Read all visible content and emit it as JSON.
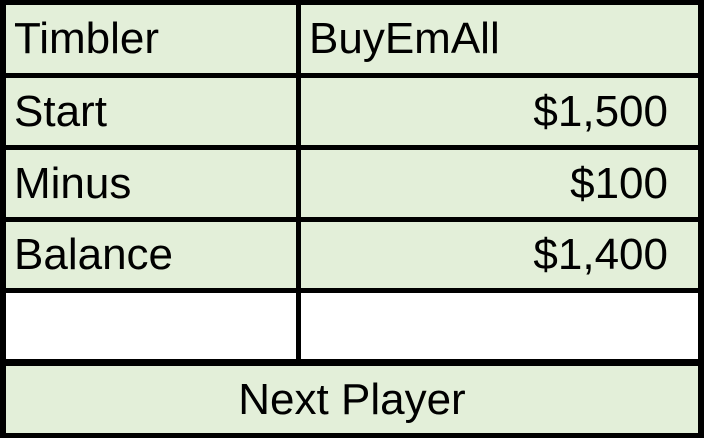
{
  "table": {
    "header": {
      "label": "Timbler",
      "value": "BuyEmAll"
    },
    "rows": [
      {
        "label": "Start",
        "value": "$1,500"
      },
      {
        "label": "Minus",
        "value": "$100"
      },
      {
        "label": "Balance",
        "value": "$1,400"
      }
    ],
    "blank_row": {
      "label": "",
      "value": ""
    }
  },
  "actions": {
    "next_player_label": "Next Player"
  },
  "colors": {
    "cell_fill": "#e3efd9",
    "blank_fill": "#ffffff",
    "grid_lines": "#000000"
  }
}
